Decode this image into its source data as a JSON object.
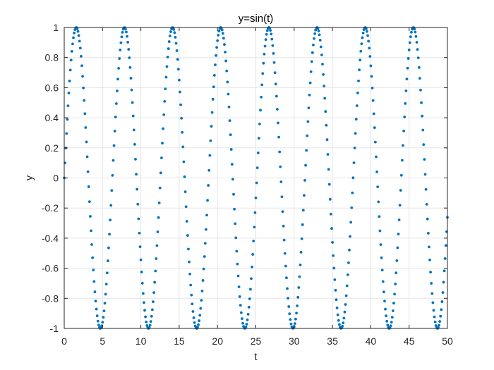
{
  "chart_data": {
    "type": "scatter",
    "title": "y=sin(t)",
    "xlabel": "t",
    "ylabel": "y",
    "xlim": [
      0,
      50
    ],
    "ylim": [
      -1,
      1
    ],
    "xticks": [
      0,
      5,
      10,
      15,
      20,
      25,
      30,
      35,
      40,
      45,
      50
    ],
    "yticks": [
      -1,
      -0.8,
      -0.6,
      -0.4,
      -0.2,
      0,
      0.2,
      0.4,
      0.6,
      0.8,
      1
    ],
    "grid": true,
    "series": [
      {
        "function": "sin(t)",
        "t_start": 0,
        "t_end": 50,
        "t_step": 0.1,
        "marker": "point"
      }
    ],
    "colors": {
      "marker": "#0072BD",
      "grid": "#e6e6e6",
      "axis": "#262626"
    }
  }
}
